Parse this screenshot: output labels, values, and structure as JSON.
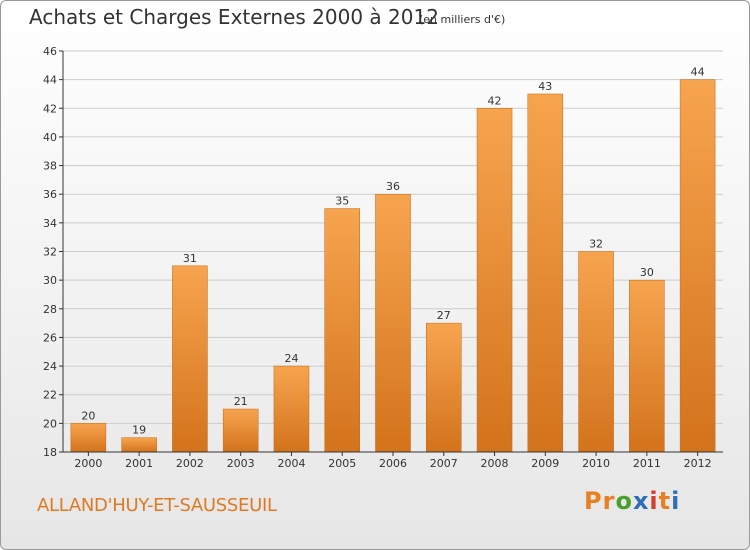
{
  "title": "Achats et Charges Externes 2000 à 2012",
  "subtitle": "(en milliers d'€)",
  "commune": "ALLAND'HUY-ET-SAUSSEUIL",
  "logo": {
    "letters": [
      "P",
      "r",
      "o",
      "x",
      "i",
      "t",
      "i"
    ],
    "colors": [
      "#e8801f",
      "#e8801f",
      "#4aa02c",
      "#2c6fb8",
      "#d43c2c",
      "#e8801f",
      "#2c6fb8"
    ]
  },
  "colors": {
    "bar_light": "#f7a44f",
    "bar_dark": "#d3731c",
    "grid": "#cccccc",
    "axis": "#333333"
  },
  "chart_data": {
    "type": "bar",
    "title": "Achats et Charges Externes 2000 à 2012",
    "subtitle": "(en milliers d'€)",
    "categories": [
      "2000",
      "2001",
      "2002",
      "2003",
      "2004",
      "2005",
      "2006",
      "2007",
      "2008",
      "2009",
      "2010",
      "2011",
      "2012"
    ],
    "values": [
      20,
      19,
      31,
      21,
      24,
      35,
      36,
      27,
      42,
      43,
      32,
      30,
      44
    ],
    "ylim": [
      18,
      46
    ],
    "yticks": [
      18,
      20,
      22,
      24,
      26,
      28,
      30,
      32,
      34,
      36,
      38,
      40,
      42,
      44,
      46
    ],
    "grid": true,
    "data_labels": true
  }
}
